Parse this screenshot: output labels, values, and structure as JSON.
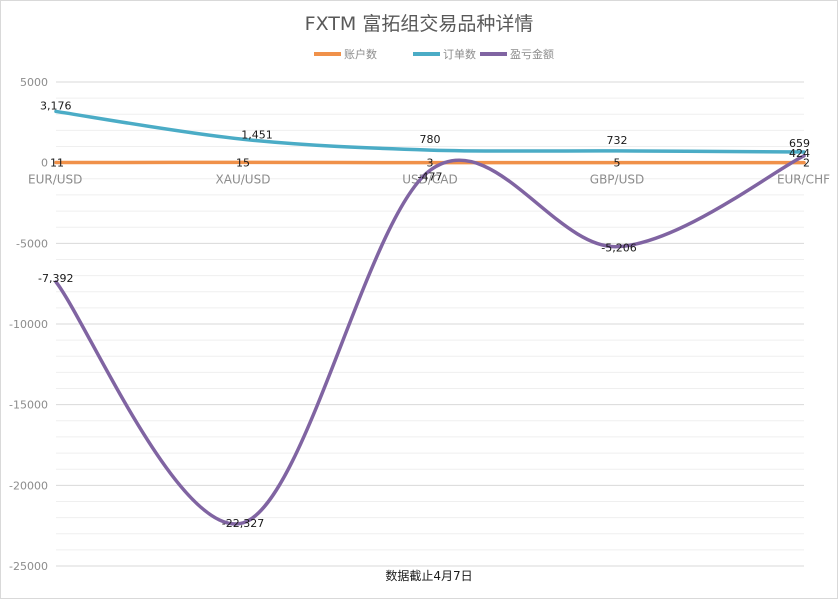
{
  "chart_data": {
    "type": "line",
    "title": "FXTM 富拓组交易品种详情",
    "categories": [
      "EUR/USD",
      "XAU/USD",
      "USD/CAD",
      "GBP/USD",
      "EUR/CHF"
    ],
    "series": [
      {
        "name": "账户数",
        "color": "#f0914a",
        "values": [
          11,
          15,
          3,
          5,
          2
        ],
        "labels": [
          "11",
          "15",
          "3",
          "5",
          "2"
        ]
      },
      {
        "name": "订单数",
        "color": "#4bacc6",
        "values": [
          3176,
          1451,
          780,
          732,
          659
        ],
        "labels": [
          "3,176",
          "1,451",
          "780",
          "732",
          "659"
        ]
      },
      {
        "name": "盈亏金额",
        "color": "#8064a2",
        "values": [
          -7392,
          -22327,
          -477,
          -5206,
          424
        ],
        "labels": [
          "-7,392",
          "-22,327",
          "-477",
          "-5,206",
          "424"
        ]
      }
    ],
    "yticks": [
      "5000",
      "0",
      "-5000",
      "-10000",
      "-15000",
      "-20000",
      "-25000"
    ],
    "ylim": [
      -25000,
      5000
    ],
    "grid": true,
    "legend_position": "top",
    "note": "数据截止4月7日"
  }
}
